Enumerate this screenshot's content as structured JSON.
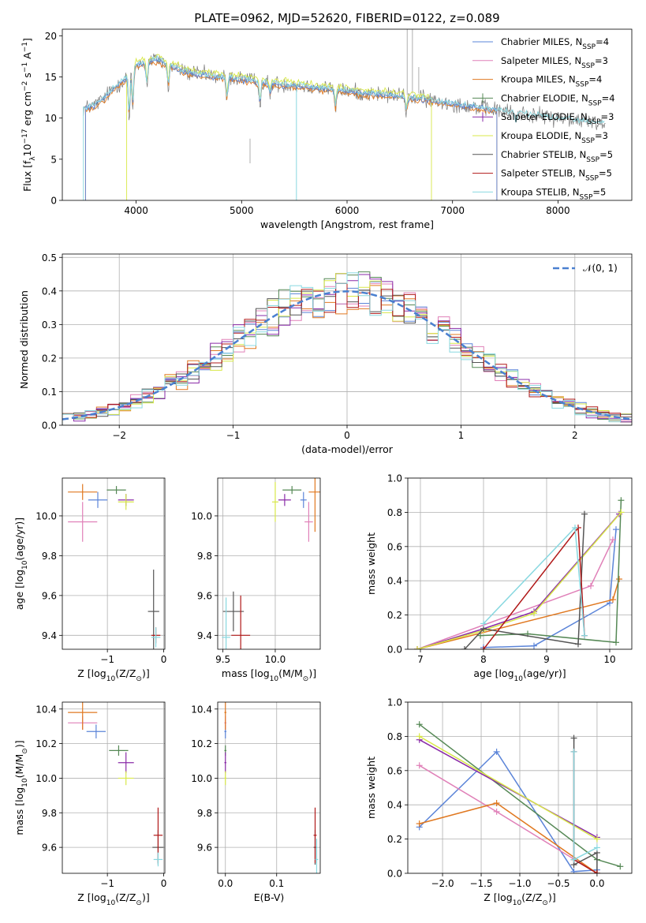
{
  "figure_title": "PLATE=0962, MJD=52620, FIBERID=0122, z=0.089",
  "colors": {
    "Chabrier MILES": "#5b84d8",
    "Salpeter MILES": "#e080b8",
    "Kroupa MILES": "#e07820",
    "Chabrier ELODIE": "#558855",
    "Salpeter ELODIE": "#8a2ba8",
    "Kroupa ELODIE": "#d8e848",
    "Chabrier STELIB": "#555555",
    "Salpeter STELIB": "#b01818",
    "Kroupa STELIB": "#88d8e0"
  },
  "chart_data": [
    {
      "id": "spectrum",
      "type": "line",
      "title": "PLATE=0962, MJD=52620, FIBERID=0122, z=0.089",
      "xlabel": "wavelength [Angstrom, rest frame]",
      "ylabel_pre": "Flux [f",
      "ylabel_sub": "λ",
      "ylabel_post": "10",
      "ylabel_sup1": "−17",
      "ylabel_mid": " erg cm",
      "ylabel_sup2": "−2",
      "ylabel_mid2": " s",
      "ylabel_sup3": "−1",
      "ylabel_end": " A",
      "ylabel_sup4": "−1",
      "ylabel_close": "]",
      "xlim": [
        3300,
        8700
      ],
      "ylim": [
        0,
        20.8
      ],
      "xticks": [
        4000,
        5000,
        6000,
        7000,
        8000
      ],
      "yticks": [
        0,
        5,
        10,
        15,
        20
      ],
      "legend": [
        {
          "name": "Chabrier MILES, N",
          "sub": "SSP",
          "suffix": "=4",
          "model": "Chabrier MILES"
        },
        {
          "name": "Salpeter MILES, N",
          "sub": "SSP",
          "suffix": "=3",
          "model": "Salpeter MILES"
        },
        {
          "name": "Kroupa MILES, N",
          "sub": "SSP",
          "suffix": "=4",
          "model": "Kroupa MILES"
        },
        {
          "name": "Chabrier ELODIE, N",
          "sub": "SSP",
          "suffix": "=4",
          "model": "Chabrier ELODIE"
        },
        {
          "name": "Salpeter ELODIE, N",
          "sub": "SSP",
          "suffix": "=3",
          "model": "Salpeter ELODIE"
        },
        {
          "name": "Kroupa ELODIE, N",
          "sub": "SSP",
          "suffix": "=3",
          "model": "Kroupa ELODIE"
        },
        {
          "name": "Chabrier STELIB, N",
          "sub": "SSP",
          "suffix": "=5",
          "model": "Chabrier STELIB"
        },
        {
          "name": "Salpeter STELIB, N",
          "sub": "SSP",
          "suffix": "=5",
          "model": "Salpeter STELIB"
        },
        {
          "name": "Kroupa STELIB, N",
          "sub": "SSP",
          "suffix": "=5",
          "model": "Kroupa STELIB"
        }
      ],
      "legend_loc": "upper right",
      "grid": false,
      "spectrum_anchor_points": [
        [
          3500,
          11.2
        ],
        [
          3600,
          11.5
        ],
        [
          3700,
          12.5
        ],
        [
          3800,
          13.8
        ],
        [
          3900,
          14.8
        ],
        [
          4000,
          16.5
        ],
        [
          4100,
          16.8
        ],
        [
          4200,
          17.2
        ],
        [
          4300,
          16.5
        ],
        [
          4500,
          15.5
        ],
        [
          4800,
          15.0
        ],
        [
          5000,
          14.8
        ],
        [
          5200,
          14.3
        ],
        [
          5500,
          14.0
        ],
        [
          5800,
          13.6
        ],
        [
          6000,
          13.3
        ],
        [
          6200,
          13.0
        ],
        [
          6500,
          12.7
        ],
        [
          6800,
          12.2
        ],
        [
          7000,
          11.8
        ],
        [
          7400,
          11.0
        ],
        [
          7800,
          10.3
        ],
        [
          8000,
          10.0
        ],
        [
          8200,
          9.7
        ],
        [
          8450,
          9.3
        ]
      ]
    },
    {
      "id": "residuals",
      "type": "step",
      "xlabel": "(data-model)/error",
      "ylabel": "Normed distribution",
      "xlim": [
        -2.5,
        2.5
      ],
      "ylim": [
        0,
        0.51
      ],
      "xticks": [
        -2,
        -1,
        0,
        1,
        2
      ],
      "yticks": [
        0.0,
        0.1,
        0.2,
        0.3,
        0.4,
        0.5
      ],
      "legend": [
        {
          "name": "𝒩(0, 1)",
          "style": "dashed"
        }
      ],
      "legend_loc": "upper right",
      "grid": true,
      "bin_width": 0.1
    },
    {
      "id": "age_vs_Z",
      "type": "errorbar",
      "xlabel_pre": "Z [log",
      "xlabel_sub": "10",
      "xlabel_post": "(Z/Z",
      "xlabel_sub2": "⊙",
      "xlabel_close": ")]",
      "ylabel_pre": "age  [log",
      "ylabel_sub": "10",
      "ylabel_post": "(age/yr)]",
      "xlim": [
        -1.8,
        0.02
      ],
      "ylim": [
        9.33,
        10.19
      ],
      "xticks": [
        -1,
        0
      ],
      "yticks": [
        9.4,
        9.6,
        9.8,
        10.0
      ],
      "grid": true,
      "points": [
        {
          "model": "Chabrier MILES",
          "x": -1.17,
          "y": 10.08,
          "xerr": 0.17,
          "yerr": 0.04
        },
        {
          "model": "Salpeter MILES",
          "x": -1.44,
          "y": 9.97,
          "xerr": 0.26,
          "yerr": 0.1
        },
        {
          "model": "Kroupa MILES",
          "x": -1.44,
          "y": 10.12,
          "xerr": 0.26,
          "yerr": 0.04
        },
        {
          "model": "Chabrier ELODIE",
          "x": -0.84,
          "y": 10.13,
          "xerr": 0.17,
          "yerr": 0.02
        },
        {
          "model": "Salpeter ELODIE",
          "x": -0.67,
          "y": 10.08,
          "xerr": 0.14,
          "yerr": 0.03
        },
        {
          "model": "Kroupa ELODIE",
          "x": -0.67,
          "y": 10.07,
          "xerr": 0.14,
          "yerr": 0.04
        },
        {
          "model": "Chabrier STELIB",
          "x": -0.18,
          "y": 9.52,
          "xerr": 0.1,
          "yerr": 0.21
        },
        {
          "model": "Salpeter STELIB",
          "x": -0.14,
          "y": 9.4,
          "xerr": 0.08,
          "yerr": 0.04
        },
        {
          "model": "Kroupa STELIB",
          "x": -0.14,
          "y": 9.39,
          "xerr": 0.08,
          "yerr": 0.05
        }
      ]
    },
    {
      "id": "age_vs_mass",
      "type": "errorbar",
      "xlabel_pre": "mass [log",
      "xlabel_sub": "10",
      "xlabel_post": "(M/M",
      "xlabel_sub2": "⊙",
      "xlabel_close": ")]",
      "xlim": [
        9.45,
        10.43
      ],
      "ylim": [
        9.33,
        10.19
      ],
      "xticks": [
        9.5,
        10.0
      ],
      "yticks": [
        9.4,
        9.6,
        9.8,
        10.0
      ],
      "grid": true,
      "points": [
        {
          "model": "Chabrier MILES",
          "x": 10.27,
          "y": 10.08,
          "xerr": 0.03,
          "yerr": 0.04
        },
        {
          "model": "Salpeter MILES",
          "x": 10.32,
          "y": 9.97,
          "xerr": 0.04,
          "yerr": 0.1
        },
        {
          "model": "Kroupa MILES",
          "x": 10.38,
          "y": 10.12,
          "xerr": 0.06,
          "yerr": 0.2
        },
        {
          "model": "Chabrier ELODIE",
          "x": 10.16,
          "y": 10.13,
          "xerr": 0.09,
          "yerr": 0.02
        },
        {
          "model": "Salpeter ELODIE",
          "x": 10.09,
          "y": 10.08,
          "xerr": 0.06,
          "yerr": 0.03
        },
        {
          "model": "Kroupa ELODIE",
          "x": 10.0,
          "y": 10.07,
          "xerr": 0.03,
          "yerr": 0.1
        },
        {
          "model": "Chabrier STELIB",
          "x": 9.6,
          "y": 9.52,
          "xerr": 0.1,
          "yerr": 0.1
        },
        {
          "model": "Salpeter STELIB",
          "x": 9.67,
          "y": 9.4,
          "xerr": 0.09,
          "yerr": 0.2
        },
        {
          "model": "Kroupa STELIB",
          "x": 9.53,
          "y": 9.39,
          "xerr": 0.04,
          "yerr": 0.2
        }
      ]
    },
    {
      "id": "weight_vs_age",
      "type": "line",
      "xlabel_pre": "age  [log",
      "xlabel_sub": "10",
      "xlabel_post": "(age/yr)]",
      "ylabel": "mass weight",
      "xlim": [
        6.8,
        10.35
      ],
      "ylim": [
        0,
        1.0
      ],
      "xticks": [
        7,
        8,
        9,
        10
      ],
      "yticks": [
        0.0,
        0.2,
        0.4,
        0.6,
        0.8,
        1.0
      ],
      "grid": true,
      "series": [
        {
          "model": "Chabrier MILES",
          "points": [
            [
              8.0,
              0.01
            ],
            [
              8.8,
              0.02
            ],
            [
              10.0,
              0.27
            ],
            [
              10.1,
              0.7
            ]
          ]
        },
        {
          "model": "Salpeter MILES",
          "points": [
            [
              6.95,
              0.0
            ],
            [
              9.7,
              0.37
            ],
            [
              10.05,
              0.64
            ]
          ]
        },
        {
          "model": "Kroupa MILES",
          "points": [
            [
              6.95,
              0.0
            ],
            [
              10.05,
              0.29
            ],
            [
              10.15,
              0.41
            ]
          ]
        },
        {
          "model": "Chabrier ELODIE",
          "points": [
            [
              7.95,
              0.08
            ],
            [
              8.7,
              0.09
            ],
            [
              10.1,
              0.04
            ],
            [
              10.18,
              0.87
            ]
          ]
        },
        {
          "model": "Salpeter ELODIE",
          "points": [
            [
              6.95,
              0.0
            ],
            [
              8.0,
              0.12
            ],
            [
              8.8,
              0.22
            ],
            [
              10.15,
              0.79
            ]
          ]
        },
        {
          "model": "Kroupa ELODIE",
          "points": [
            [
              6.95,
              0.0
            ],
            [
              8.0,
              0.11
            ],
            [
              8.8,
              0.21
            ],
            [
              10.18,
              0.8
            ]
          ]
        },
        {
          "model": "Chabrier STELIB",
          "points": [
            [
              7.7,
              0.0
            ],
            [
              8.0,
              0.12
            ],
            [
              9.5,
              0.03
            ],
            [
              9.6,
              0.79
            ]
          ]
        },
        {
          "model": "Salpeter STELIB",
          "points": [
            [
              8.0,
              0.0
            ],
            [
              9.5,
              0.71
            ],
            [
              9.6,
              0.08
            ]
          ]
        },
        {
          "model": "Kroupa STELIB",
          "points": [
            [
              8.0,
              0.15
            ],
            [
              9.45,
              0.71
            ],
            [
              9.6,
              0.08
            ]
          ]
        }
      ]
    },
    {
      "id": "mass_vs_Z",
      "type": "errorbar",
      "xlabel_pre": "Z [log",
      "xlabel_sub": "10",
      "xlabel_post": "(Z/Z",
      "xlabel_sub2": "⊙",
      "xlabel_close": ")]",
      "ylabel_pre": "mass [log",
      "ylabel_sub": "10",
      "ylabel_post": "(M/M",
      "ylabel_sub2": "⊙",
      "ylabel_close": ")]",
      "xlim": [
        -1.8,
        0.02
      ],
      "ylim": [
        9.45,
        10.44
      ],
      "xticks": [
        -1,
        0
      ],
      "yticks": [
        9.6,
        9.8,
        10.0,
        10.2,
        10.4
      ],
      "grid": true,
      "points": [
        {
          "model": "Chabrier MILES",
          "x": -1.2,
          "y": 10.27,
          "xerr": 0.17,
          "yerr": 0.04
        },
        {
          "model": "Salpeter MILES",
          "x": -1.44,
          "y": 10.32,
          "xerr": 0.26,
          "yerr": 0.04
        },
        {
          "model": "Kroupa MILES",
          "x": -1.44,
          "y": 10.38,
          "xerr": 0.26,
          "yerr": 0.1
        },
        {
          "model": "Chabrier ELODIE",
          "x": -0.8,
          "y": 10.16,
          "xerr": 0.17,
          "yerr": 0.03
        },
        {
          "model": "Salpeter ELODIE",
          "x": -0.67,
          "y": 10.09,
          "xerr": 0.14,
          "yerr": 0.06
        },
        {
          "model": "Kroupa ELODIE",
          "x": -0.67,
          "y": 10.0,
          "xerr": 0.14,
          "yerr": 0.04
        },
        {
          "model": "Chabrier STELIB",
          "x": -0.1,
          "y": 9.6,
          "xerr": 0.1,
          "yerr": 0.1
        },
        {
          "model": "Salpeter STELIB",
          "x": -0.1,
          "y": 9.67,
          "xerr": 0.08,
          "yerr": 0.16
        },
        {
          "model": "Kroupa STELIB",
          "x": -0.1,
          "y": 9.53,
          "xerr": 0.08,
          "yerr": 0.04
        }
      ]
    },
    {
      "id": "mass_vs_ebv",
      "type": "errorbar",
      "xlabel": "E(B-V)",
      "xlim": [
        -0.015,
        0.185
      ],
      "ylim": [
        9.45,
        10.44
      ],
      "xticks": [
        0.0,
        0.1
      ],
      "yticks": [
        9.6,
        9.8,
        10.0,
        10.2,
        10.4
      ],
      "grid": true,
      "points": [
        {
          "model": "Chabrier MILES",
          "x": 0.0,
          "y": 10.27,
          "xerr": 0.002,
          "yerr": 0.04
        },
        {
          "model": "Salpeter MILES",
          "x": 0.0,
          "y": 10.32,
          "xerr": 0.002,
          "yerr": 0.04
        },
        {
          "model": "Kroupa MILES",
          "x": 0.0,
          "y": 10.38,
          "xerr": 0.002,
          "yerr": 0.1
        },
        {
          "model": "Chabrier ELODIE",
          "x": 0.0,
          "y": 10.16,
          "xerr": 0.002,
          "yerr": 0.03
        },
        {
          "model": "Salpeter ELODIE",
          "x": 0.0,
          "y": 10.09,
          "xerr": 0.002,
          "yerr": 0.06
        },
        {
          "model": "Kroupa ELODIE",
          "x": 0.0,
          "y": 10.0,
          "xerr": 0.002,
          "yerr": 0.04
        },
        {
          "model": "Chabrier STELIB",
          "x": 0.175,
          "y": 9.6,
          "xerr": 0.003,
          "yerr": 0.1
        },
        {
          "model": "Salpeter STELIB",
          "x": 0.175,
          "y": 9.67,
          "xerr": 0.003,
          "yerr": 0.16
        },
        {
          "model": "Kroupa STELIB",
          "x": 0.178,
          "y": 9.53,
          "xerr": 0.003,
          "yerr": 0.12
        }
      ]
    },
    {
      "id": "weight_vs_Z",
      "type": "line",
      "xlabel_pre": "Z [log",
      "xlabel_sub": "10",
      "xlabel_post": "(Z/Z",
      "xlabel_sub2": "⊙",
      "xlabel_close": ")]",
      "ylabel": "mass weight",
      "xlim": [
        -2.45,
        0.45
      ],
      "ylim": [
        0,
        1.0
      ],
      "xticks": [
        -2.0,
        -1.5,
        -1.0,
        -0.5,
        0.0
      ],
      "xticklabels": [
        "−2.0",
        "−1.5",
        "−1.0",
        "−0.5",
        "0.0"
      ],
      "yticks": [
        0.0,
        0.2,
        0.4,
        0.6,
        0.8,
        1.0
      ],
      "grid": true,
      "series": [
        {
          "model": "Chabrier MILES",
          "points": [
            [
              -2.3,
              0.27
            ],
            [
              -1.3,
              0.71
            ],
            [
              -0.3,
              0.01
            ],
            [
              0.0,
              0.02
            ]
          ]
        },
        {
          "model": "Salpeter MILES",
          "points": [
            [
              -2.3,
              0.63
            ],
            [
              -1.3,
              0.36
            ],
            [
              0.0,
              0.0
            ]
          ]
        },
        {
          "model": "Kroupa MILES",
          "points": [
            [
              -2.3,
              0.29
            ],
            [
              -1.3,
              0.41
            ],
            [
              0.0,
              0.0
            ]
          ]
        },
        {
          "model": "Chabrier ELODIE",
          "points": [
            [
              -2.3,
              0.87
            ],
            [
              0.0,
              0.08
            ],
            [
              0.3,
              0.04
            ]
          ]
        },
        {
          "model": "Salpeter ELODIE",
          "points": [
            [
              -2.3,
              0.78
            ],
            [
              0.0,
              0.21
            ]
          ]
        },
        {
          "model": "Kroupa ELODIE",
          "points": [
            [
              -2.3,
              0.8
            ],
            [
              0.0,
              0.2
            ]
          ]
        },
        {
          "model": "Chabrier STELIB",
          "points": [
            [
              -0.3,
              0.79
            ],
            [
              -0.3,
              0.05
            ],
            [
              0.0,
              0.12
            ],
            [
              0.0,
              0.0
            ]
          ]
        },
        {
          "model": "Salpeter STELIB",
          "points": [
            [
              -0.3,
              0.71
            ],
            [
              -0.3,
              0.08
            ],
            [
              0.0,
              0.0
            ]
          ]
        },
        {
          "model": "Kroupa STELIB",
          "points": [
            [
              -0.3,
              0.71
            ],
            [
              -0.3,
              0.08
            ],
            [
              0.0,
              0.15
            ]
          ]
        }
      ]
    }
  ]
}
